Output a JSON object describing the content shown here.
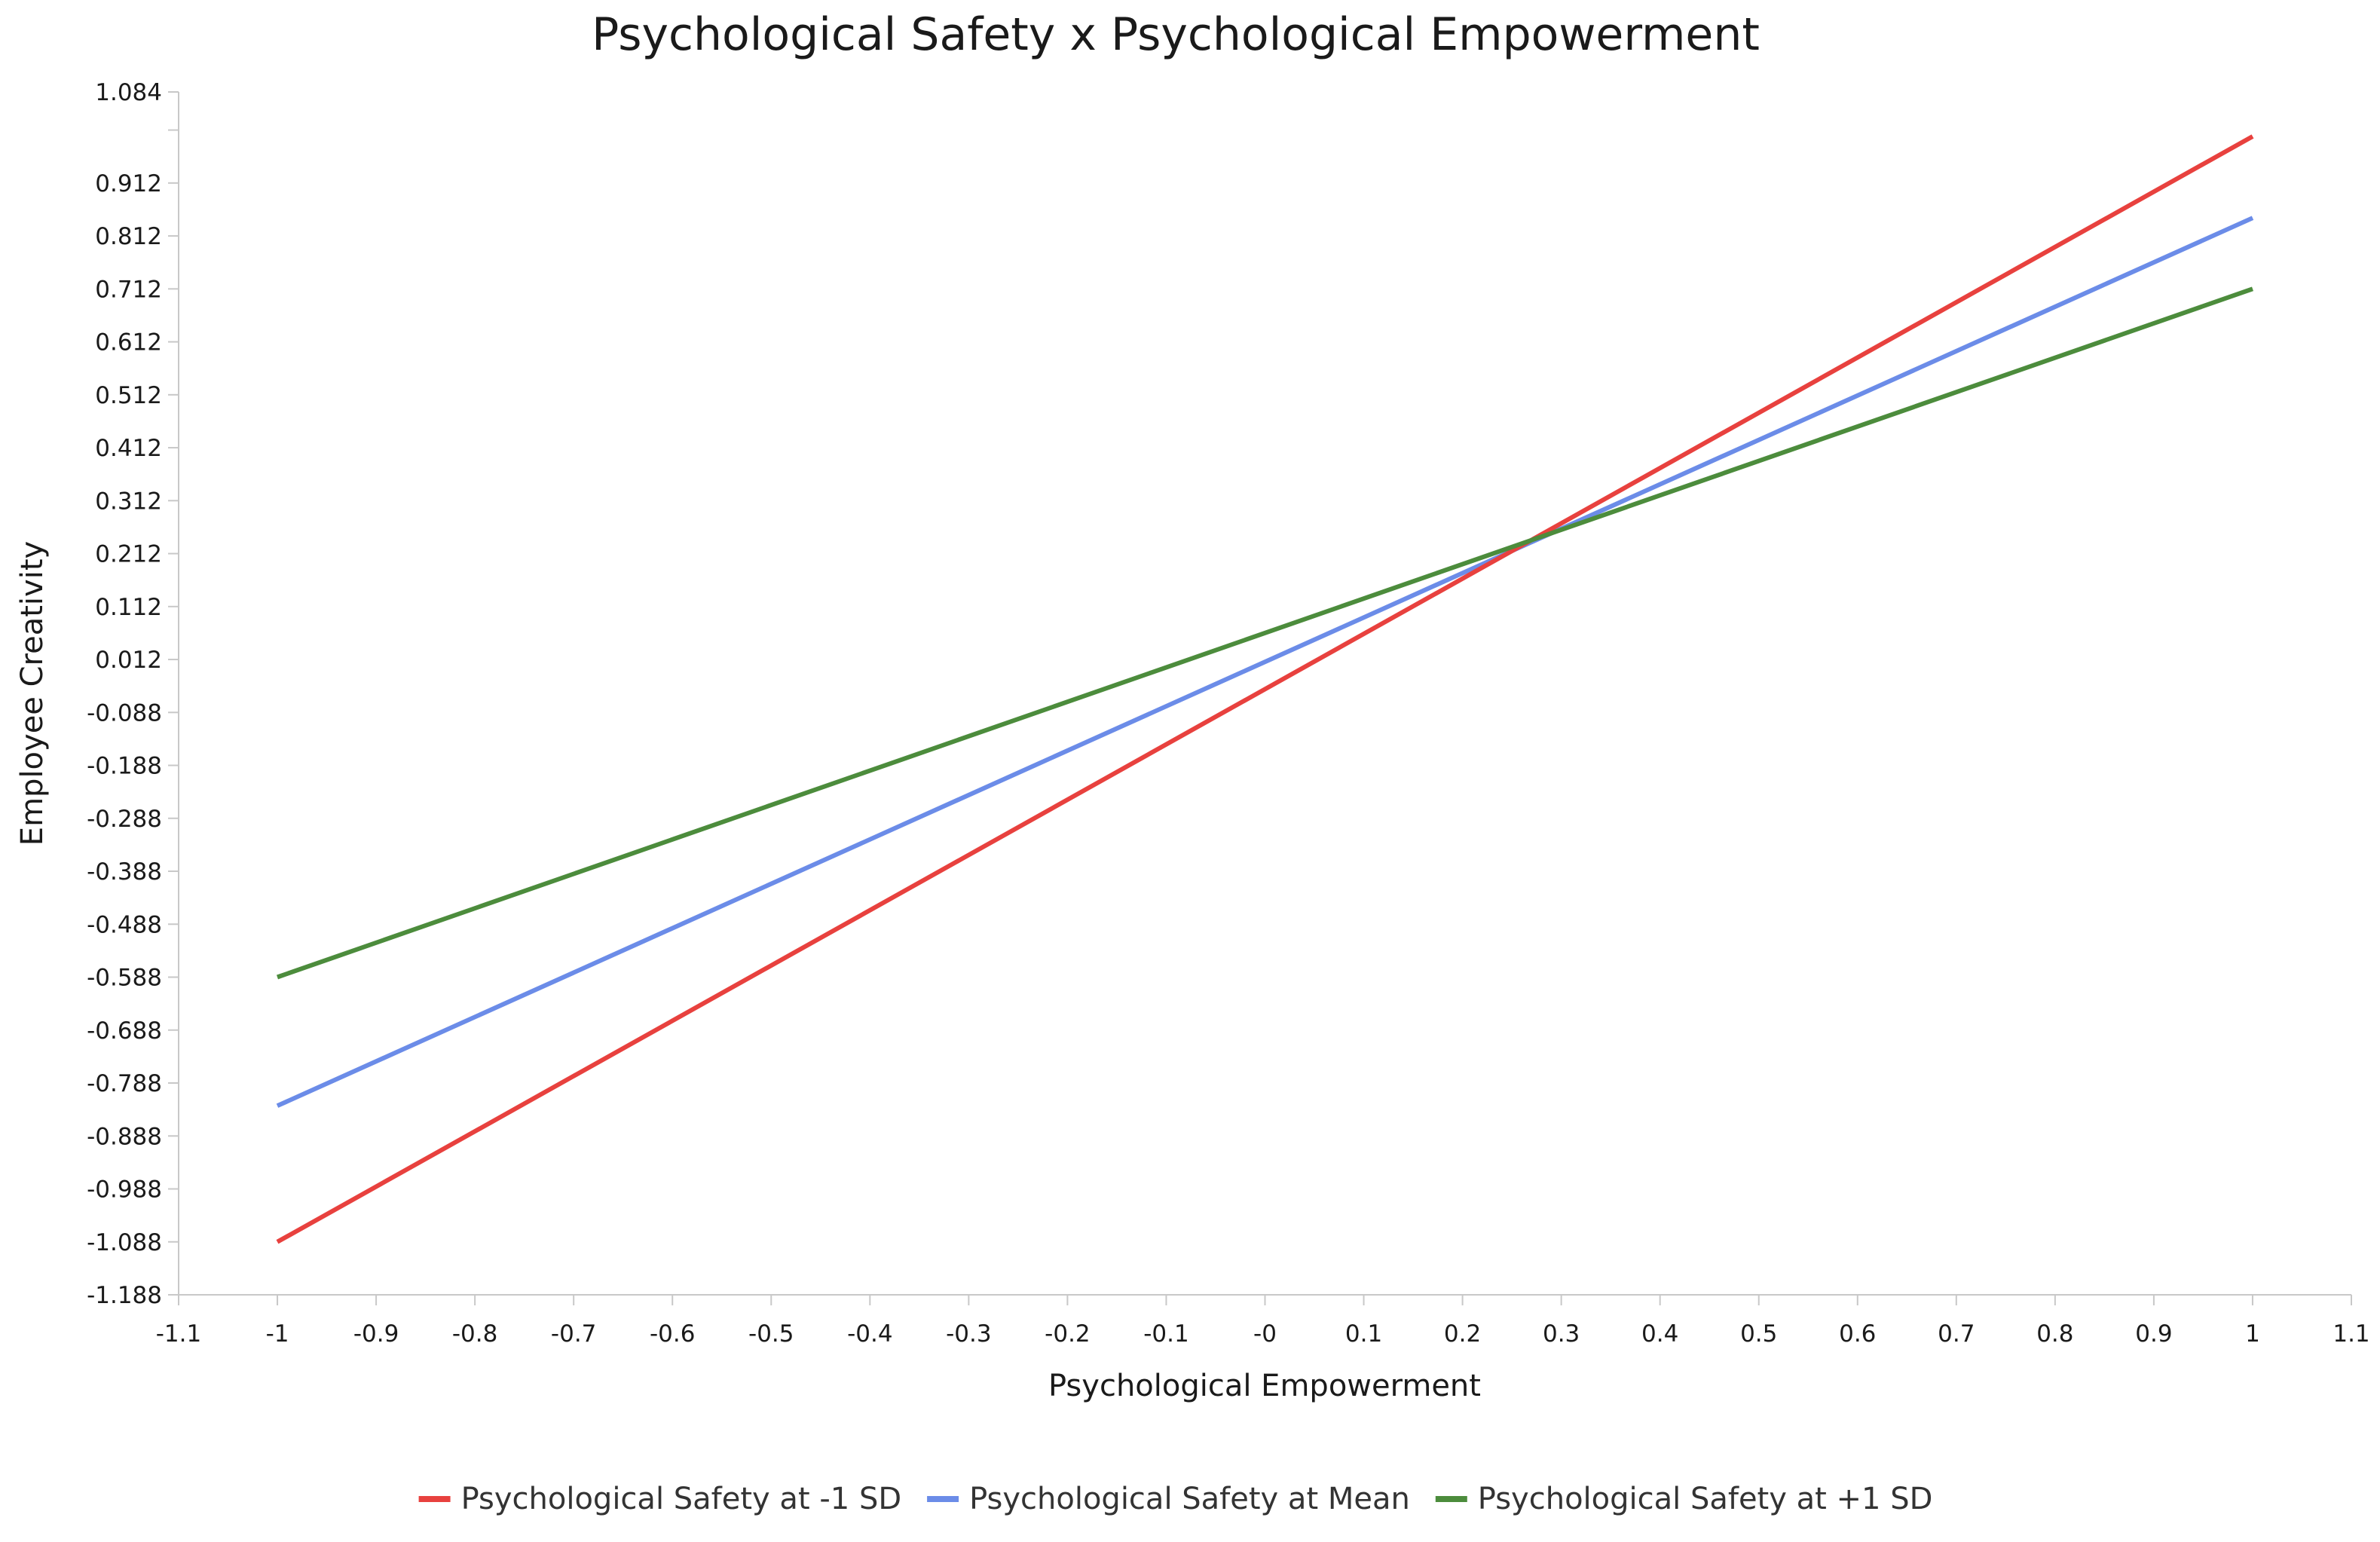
{
  "chart_data": {
    "type": "line",
    "title": "Psychological Safety x Psychological Empowerment",
    "xlabel": "Psychological Empowerment",
    "ylabel": "Employee Creativity",
    "xlim": [
      -1.1,
      1.1
    ],
    "ylim": [
      -1.188,
      1.084
    ],
    "x_ticks": [
      {
        "value": -1.1,
        "label": "-1.1"
      },
      {
        "value": -1.0,
        "label": "-1"
      },
      {
        "value": -0.9,
        "label": "-0.9"
      },
      {
        "value": -0.8,
        "label": "-0.8"
      },
      {
        "value": -0.7,
        "label": "-0.7"
      },
      {
        "value": -0.6,
        "label": "-0.6"
      },
      {
        "value": -0.5,
        "label": "-0.5"
      },
      {
        "value": -0.4,
        "label": "-0.4"
      },
      {
        "value": -0.3,
        "label": "-0.3"
      },
      {
        "value": -0.2,
        "label": "-0.2"
      },
      {
        "value": -0.1,
        "label": "-0.1"
      },
      {
        "value": 0.0,
        "label": "-0"
      },
      {
        "value": 0.1,
        "label": "0.1"
      },
      {
        "value": 0.2,
        "label": "0.2"
      },
      {
        "value": 0.3,
        "label": "0.3"
      },
      {
        "value": 0.4,
        "label": "0.4"
      },
      {
        "value": 0.5,
        "label": "0.5"
      },
      {
        "value": 0.6,
        "label": "0.6"
      },
      {
        "value": 0.7,
        "label": "0.7"
      },
      {
        "value": 0.8,
        "label": "0.8"
      },
      {
        "value": 0.9,
        "label": "0.9"
      },
      {
        "value": 1.0,
        "label": "1"
      },
      {
        "value": 1.1,
        "label": "1.1"
      }
    ],
    "y_ticks": [
      {
        "value": 1.084,
        "label": "1.084"
      },
      {
        "value": 1.012,
        "label": ""
      },
      {
        "value": 0.912,
        "label": "0.912"
      },
      {
        "value": 0.812,
        "label": "0.812"
      },
      {
        "value": 0.712,
        "label": "0.712"
      },
      {
        "value": 0.612,
        "label": "0.612"
      },
      {
        "value": 0.512,
        "label": "0.512"
      },
      {
        "value": 0.412,
        "label": "0.412"
      },
      {
        "value": 0.312,
        "label": "0.312"
      },
      {
        "value": 0.212,
        "label": "0.212"
      },
      {
        "value": 0.112,
        "label": "0.112"
      },
      {
        "value": 0.012,
        "label": "0.012"
      },
      {
        "value": -0.088,
        "label": "-0.088"
      },
      {
        "value": -0.188,
        "label": "-0.188"
      },
      {
        "value": -0.288,
        "label": "-0.288"
      },
      {
        "value": -0.388,
        "label": "-0.388"
      },
      {
        "value": -0.488,
        "label": "-0.488"
      },
      {
        "value": -0.588,
        "label": "-0.588"
      },
      {
        "value": -0.688,
        "label": "-0.688"
      },
      {
        "value": -0.788,
        "label": "-0.788"
      },
      {
        "value": -0.888,
        "label": "-0.888"
      },
      {
        "value": -0.988,
        "label": "-0.988"
      },
      {
        "value": -1.088,
        "label": "-1.088"
      },
      {
        "value": -1.188,
        "label": "-1.188"
      }
    ],
    "series": [
      {
        "name": "Psychological Safety at -1 SD",
        "color": "#e8413e",
        "x": [
          -1,
          1
        ],
        "y": [
          -1.088,
          1.0
        ]
      },
      {
        "name": "Psychological Safety at Mean",
        "color": "#6b8ce8",
        "x": [
          -1,
          1
        ],
        "y": [
          -0.831,
          0.846
        ]
      },
      {
        "name": "Psychological Safety at +1 SD",
        "color": "#4c8c3c",
        "x": [
          -1,
          1
        ],
        "y": [
          -0.588,
          0.712
        ]
      }
    ],
    "grid": false,
    "legend_position": "bottom"
  }
}
